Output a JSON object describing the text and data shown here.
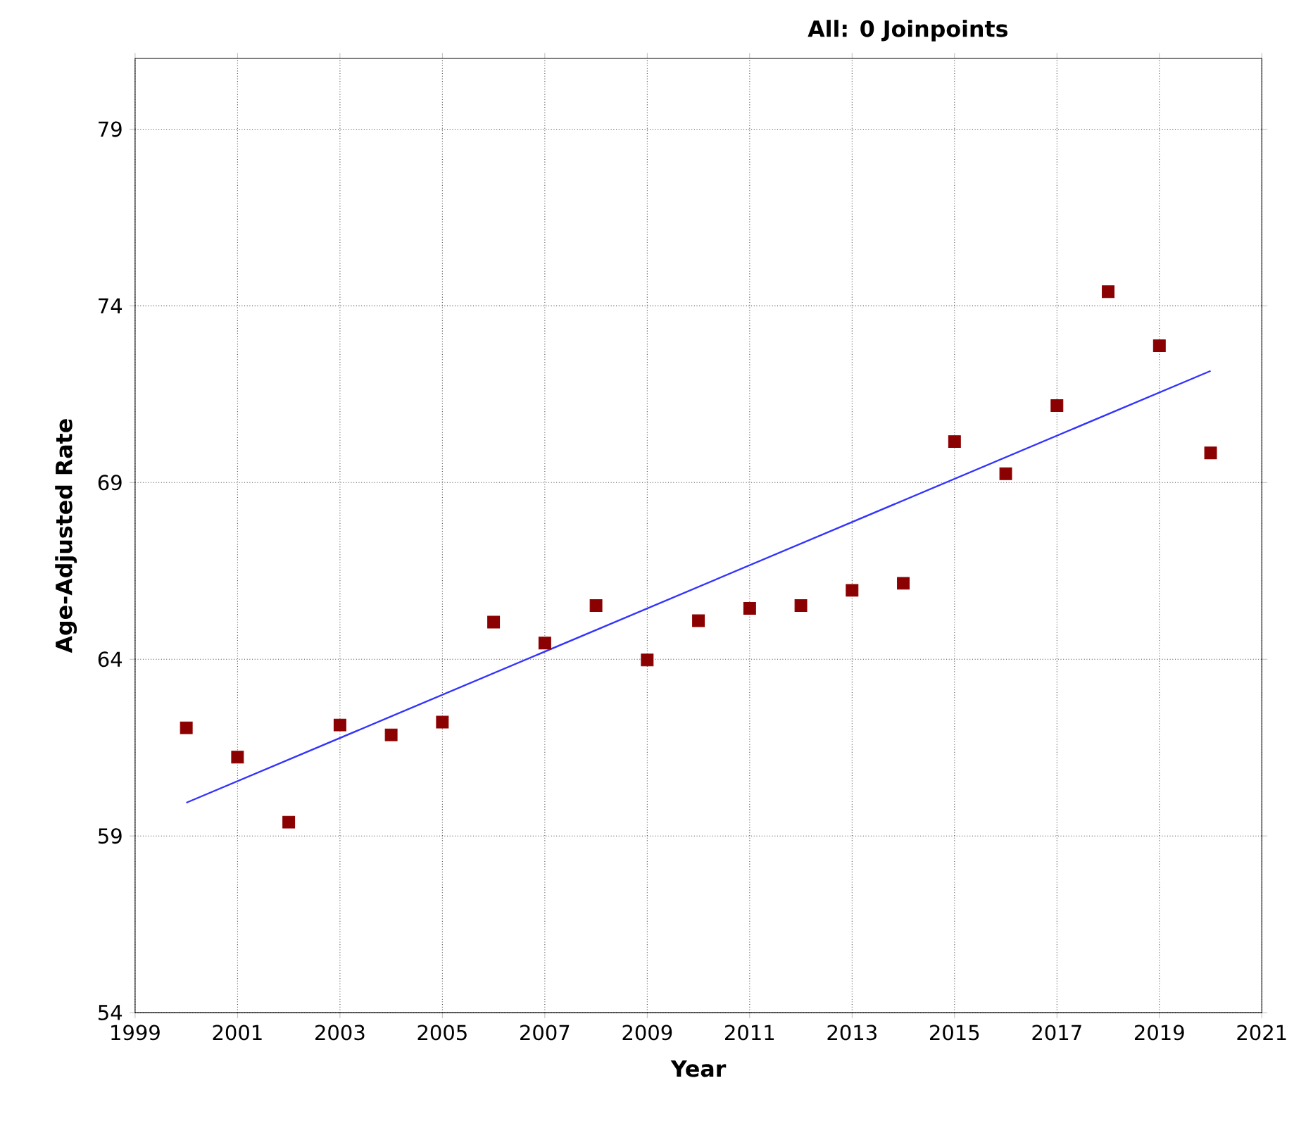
{
  "chart_data": {
    "type": "scatter",
    "title": "All: 0 Joinpoints",
    "xlabel": "Year",
    "ylabel": "Age-Adjusted Rate",
    "xlim": [
      1999,
      2021
    ],
    "xticks": [
      1999,
      2001,
      2003,
      2005,
      2007,
      2009,
      2011,
      2013,
      2015,
      2017,
      2019,
      2021
    ],
    "ylim": [
      54,
      81
    ],
    "yticks": [
      54,
      59,
      64,
      69,
      74,
      79
    ],
    "grid": true,
    "series": [
      {
        "marker": "square",
        "color": "#8b0000",
        "x": [
          2000,
          2001,
          2002,
          2003,
          2004,
          2005,
          2006,
          2007,
          2008,
          2009,
          2010,
          2011,
          2012,
          2013,
          2014,
          2015,
          2016,
          2017,
          2018,
          2019,
          2020
        ],
        "values": [
          62.06,
          61.23,
          59.39,
          62.14,
          61.86,
          62.22,
          65.05,
          64.46,
          65.52,
          63.98,
          65.09,
          65.44,
          65.52,
          65.95,
          66.15,
          70.16,
          69.25,
          71.18,
          74.4,
          72.87,
          69.84
        ]
      },
      {
        "type": "line",
        "color": "#3333ff",
        "x": [
          2000,
          2020
        ],
        "values": [
          59.94,
          72.16
        ]
      }
    ]
  }
}
